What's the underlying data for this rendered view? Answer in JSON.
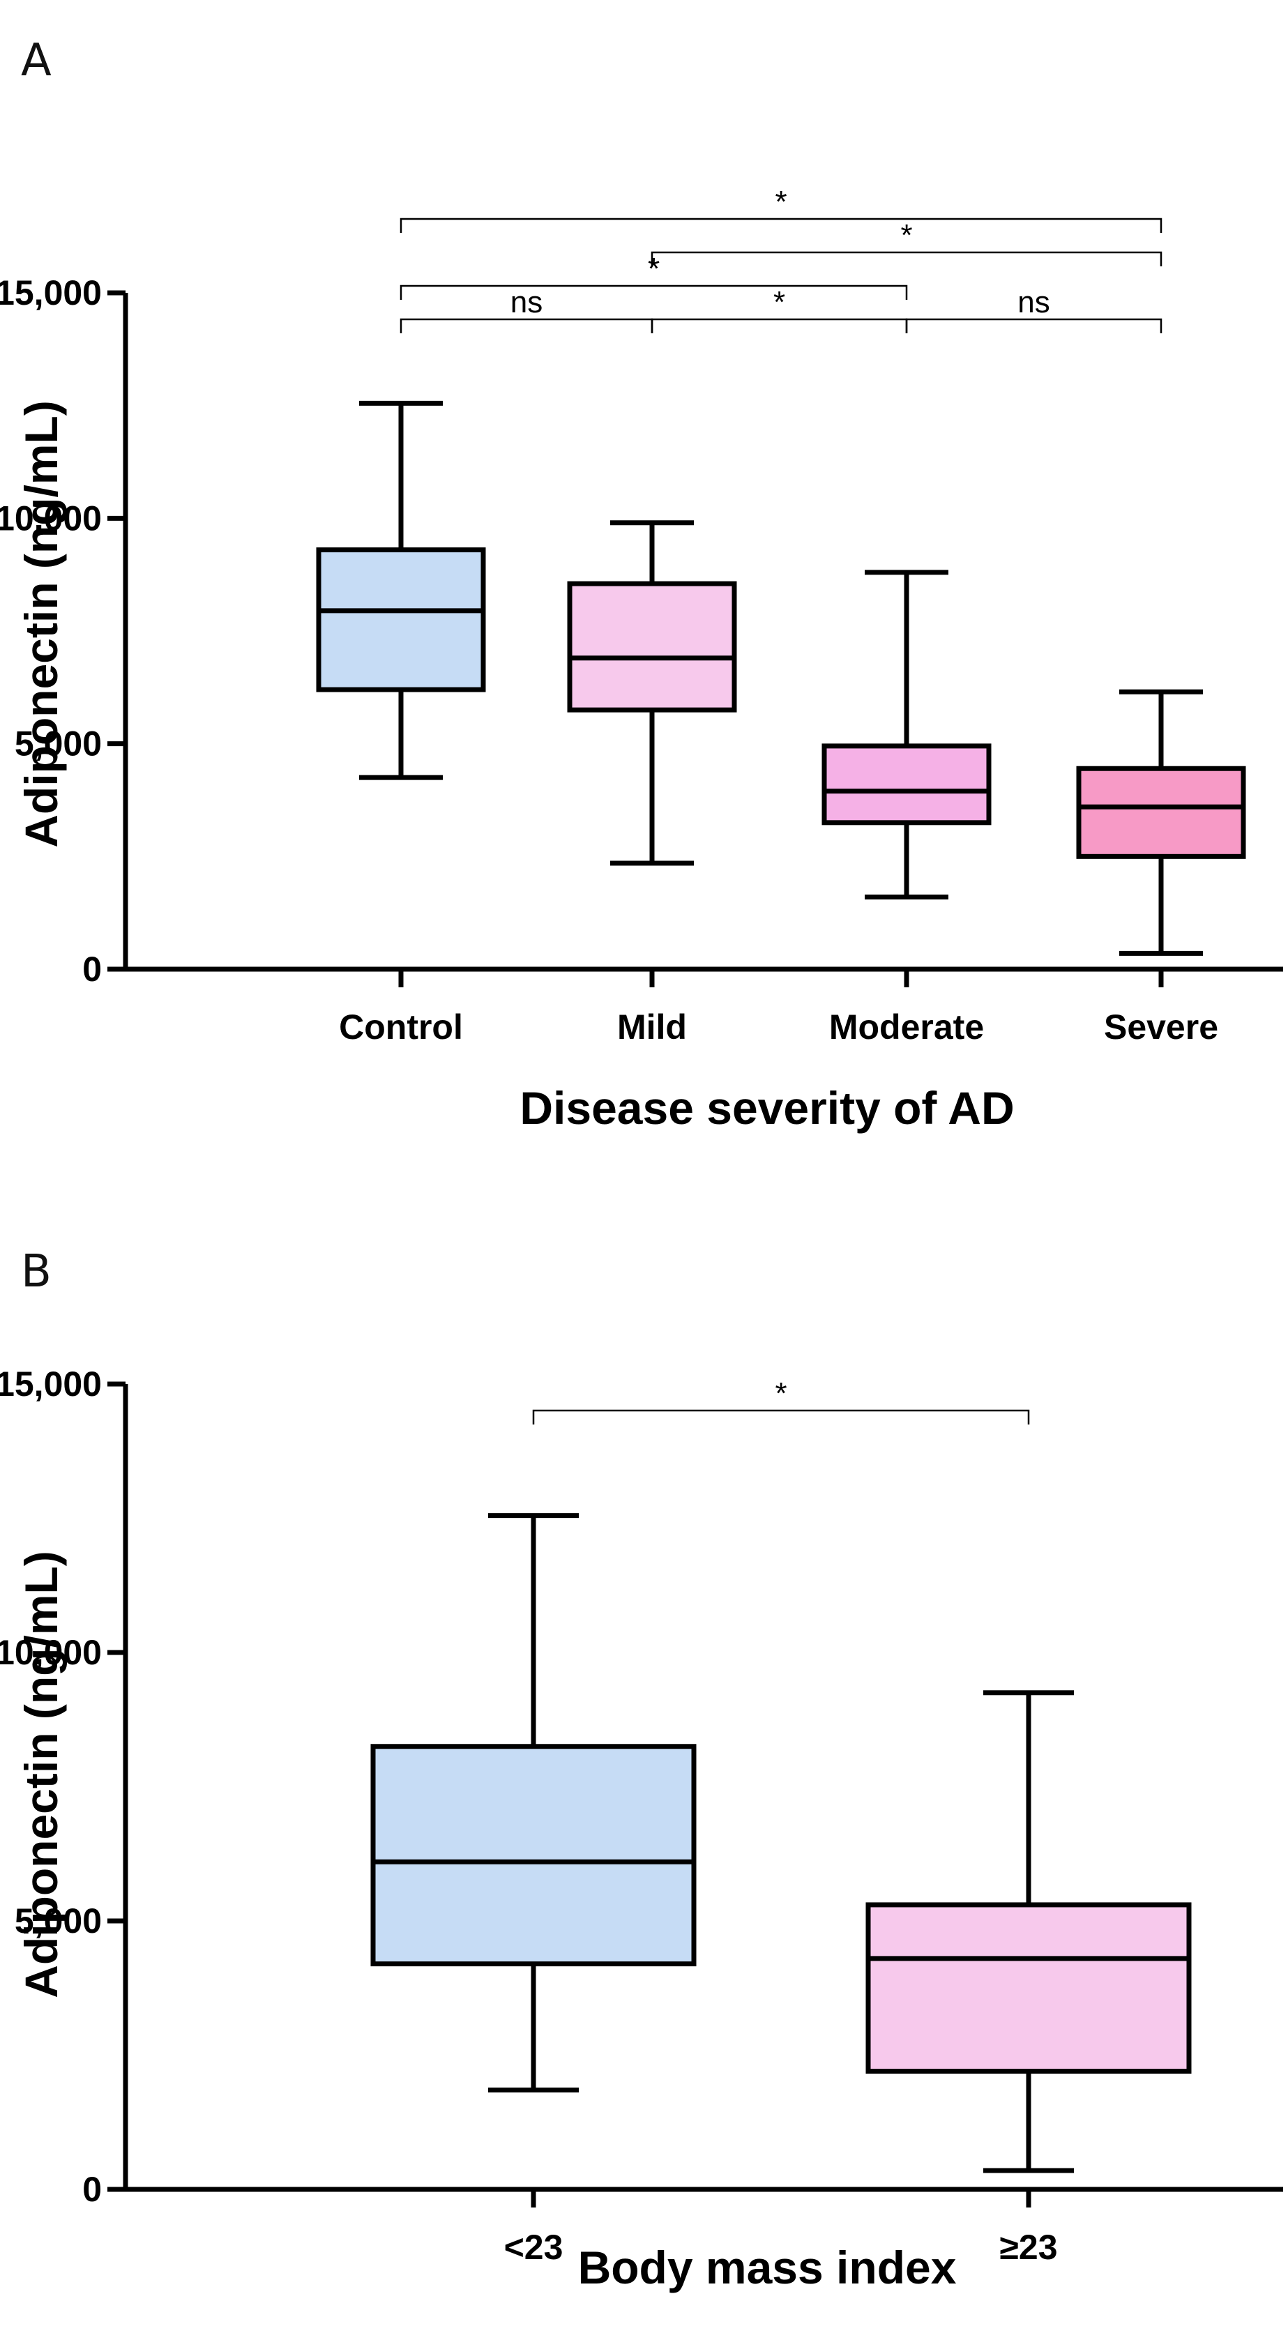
{
  "chart_data": [
    {
      "panel": "A",
      "type": "boxplot",
      "xlabel": "Disease severity of AD",
      "ylabel": "Adiponectin (ng/mL)",
      "ylim": [
        0,
        15000
      ],
      "yticks": [
        {
          "value": 0,
          "label": "0"
        },
        {
          "value": 5000,
          "label": "5,000"
        },
        {
          "value": 10000,
          "label": "10,000"
        },
        {
          "value": 15000,
          "label": "15,000"
        }
      ],
      "categories": [
        "Control",
        "Mild",
        "Moderate",
        "Severe"
      ],
      "boxes": [
        {
          "category": "Control",
          "min": 4250,
          "q1": 6200,
          "median": 7950,
          "q3": 9300,
          "max": 12550,
          "color": "#c6dcf5"
        },
        {
          "category": "Mild",
          "min": 2350,
          "q1": 5750,
          "median": 6900,
          "q3": 8550,
          "max": 9900,
          "color": "#f7c9ec"
        },
        {
          "category": "Moderate",
          "min": 1600,
          "q1": 3250,
          "median": 3950,
          "q3": 4950,
          "max": 8800,
          "color": "#f5b1e6"
        },
        {
          "category": "Severe",
          "min": 350,
          "q1": 2500,
          "median": 3600,
          "q3": 4450,
          "max": 6150,
          "color": "#f79ac6"
        }
      ],
      "comparisons": [
        {
          "from": "Control",
          "to": "Severe",
          "label": "*"
        },
        {
          "from": "Control",
          "to": "Moderate",
          "label": "*"
        },
        {
          "from": "Control",
          "to": "Mild",
          "label": "ns"
        },
        {
          "from": "Mild",
          "to": "Severe",
          "label": "*"
        },
        {
          "from": "Mild",
          "to": "Moderate",
          "label": "*"
        },
        {
          "from": "Moderate",
          "to": "Severe",
          "label": "ns"
        }
      ]
    },
    {
      "panel": "B",
      "type": "boxplot",
      "xlabel": "Body mass index",
      "ylabel": "Adiponectin (ng/mL)",
      "ylim": [
        0,
        15000
      ],
      "yticks": [
        {
          "value": 0,
          "label": "0"
        },
        {
          "value": 5000,
          "label": "5,000"
        },
        {
          "value": 10000,
          "label": "10,000"
        },
        {
          "value": 15000,
          "label": "15,000"
        }
      ],
      "categories": [
        "<23",
        "≥23"
      ],
      "boxes": [
        {
          "category": "<23",
          "min": 1850,
          "q1": 4200,
          "median": 6100,
          "q3": 8250,
          "max": 12550,
          "color": "#c6dcf5"
        },
        {
          "category": "≥23",
          "min": 350,
          "q1": 2200,
          "median": 4300,
          "q3": 5300,
          "max": 9250,
          "color": "#f7c9ec"
        }
      ],
      "comparisons": [
        {
          "from": "<23",
          "to": "≥23",
          "label": "*"
        }
      ]
    }
  ]
}
